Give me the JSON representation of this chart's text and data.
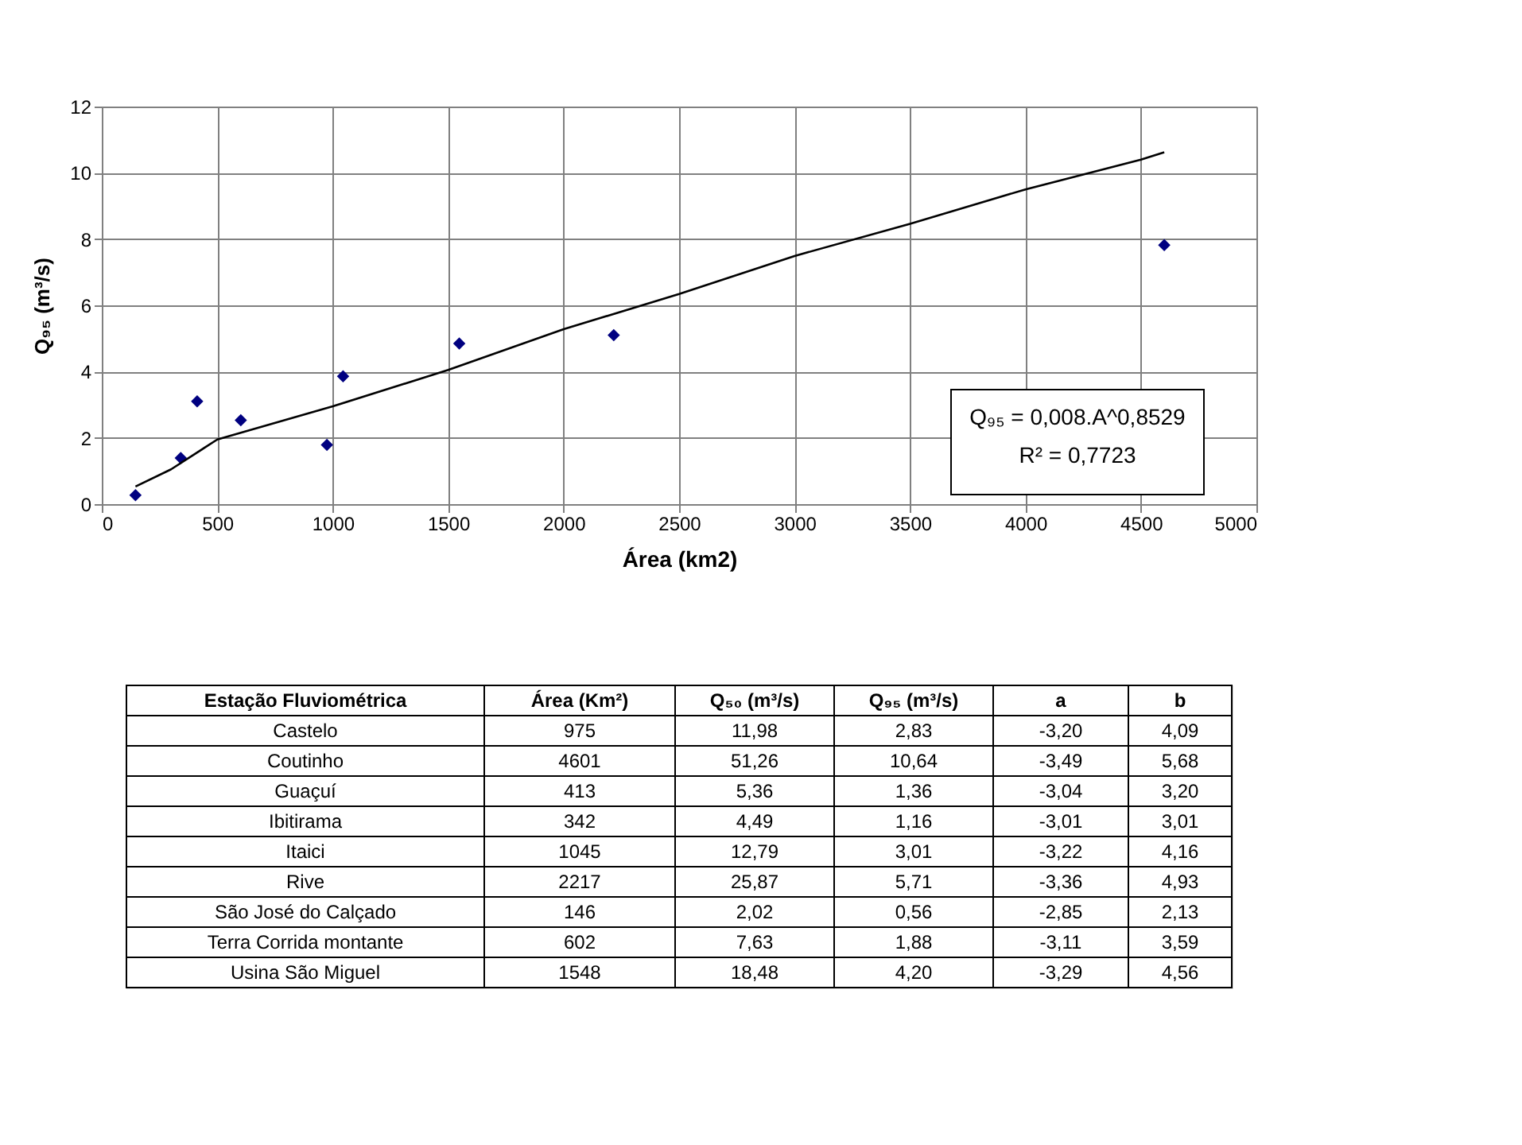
{
  "chart_data": [
    {
      "type": "scatter",
      "xlabel": "Área (km2)",
      "ylabel": "Q₉₅ (m³/s)",
      "xlim": [
        0,
        5000
      ],
      "xticks": [
        0,
        500,
        1000,
        1500,
        2000,
        2500,
        3000,
        3500,
        4000,
        4500,
        5000
      ],
      "ylim": [
        0,
        12
      ],
      "yticks": [
        0,
        2,
        4,
        6,
        8,
        10,
        12
      ],
      "grid": true,
      "series": [
        {
          "type": "scatter",
          "marker": "diamond",
          "color": "#000080",
          "x": [
            146,
            342,
            413,
            602,
            975,
            1045,
            1548,
            2217,
            4601
          ],
          "values": [
            0.27,
            1.39,
            3.1,
            2.53,
            1.79,
            3.86,
            4.85,
            5.1,
            7.82
          ]
        },
        {
          "type": "line",
          "color": "#000000",
          "x": [
            146,
            300,
            500,
            1000,
            1500,
            2000,
            2500,
            3000,
            3500,
            4000,
            4500,
            4601
          ],
          "values": [
            0.53,
            1.05,
            1.95,
            2.95,
            4.05,
            5.28,
            6.34,
            7.49,
            8.46,
            9.5,
            10.4,
            10.62
          ]
        }
      ],
      "annotations": [
        "Q₉₅ = 0,008.A^0,8529",
        "R² = 0,7723"
      ]
    },
    {
      "type": "other",
      "categories": [
        "Estação Fluviométrica",
        "Área (Km²)",
        "Q₅₀ (m³/s)",
        "Q₉₅ (m³/s)",
        "a",
        "b"
      ],
      "y_categories": [
        "Castelo",
        "Coutinho",
        "Guaçuí",
        "Ibitirama",
        "Itaici",
        "Rive",
        "São José do Calçado",
        "Terra Corrida montante",
        "Usina São Miguel"
      ],
      "cell_labels": [
        [
          "975",
          "11,98",
          "2,83",
          "-3,20",
          "4,09"
        ],
        [
          "4601",
          "51,26",
          "10,64",
          "-3,49",
          "5,68"
        ],
        [
          "413",
          "5,36",
          "1,36",
          "-3,04",
          "3,20"
        ],
        [
          "342",
          "4,49",
          "1,16",
          "-3,01",
          "3,01"
        ],
        [
          "1045",
          "12,79",
          "3,01",
          "-3,22",
          "4,16"
        ],
        [
          "2217",
          "25,87",
          "5,71",
          "-3,36",
          "4,93"
        ],
        [
          "146",
          "2,02",
          "0,56",
          "-2,85",
          "2,13"
        ],
        [
          "602",
          "7,63",
          "1,88",
          "-3,11",
          "3,59"
        ],
        [
          "1548",
          "18,48",
          "4,20",
          "-3,29",
          "4,56"
        ]
      ]
    }
  ]
}
